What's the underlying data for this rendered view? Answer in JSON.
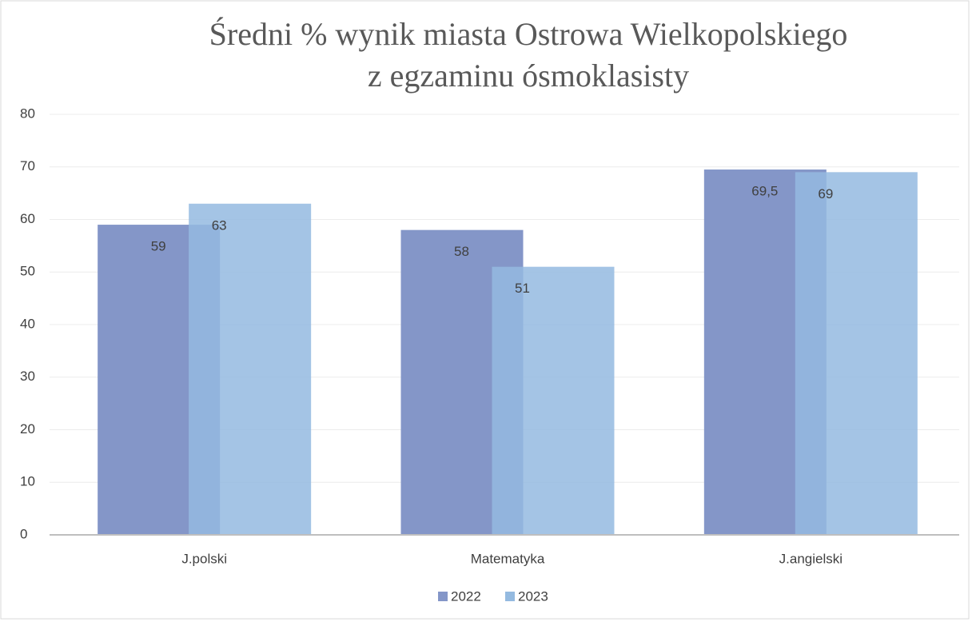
{
  "chart_data": {
    "type": "bar",
    "title": [
      "Średni % wynik miasta Ostrowa Wielkopolskiego",
      "z  egzaminu ósmoklasisty"
    ],
    "categories": [
      "J.polski",
      "Matematyka",
      "J.angielski"
    ],
    "series": [
      {
        "name": "2022",
        "color": "#8496c8",
        "values": [
          59,
          58,
          69.5
        ],
        "value_labels": [
          "59",
          "58",
          "69,5"
        ]
      },
      {
        "name": "2023",
        "color": "#94bae0",
        "values": [
          63,
          51,
          69
        ],
        "value_labels": [
          "63",
          "51",
          "69"
        ]
      }
    ],
    "ylim": [
      0,
      80
    ],
    "yticks": [
      0,
      10,
      20,
      30,
      40,
      50,
      60,
      70,
      80
    ],
    "grid": true,
    "legend": "bottom"
  }
}
